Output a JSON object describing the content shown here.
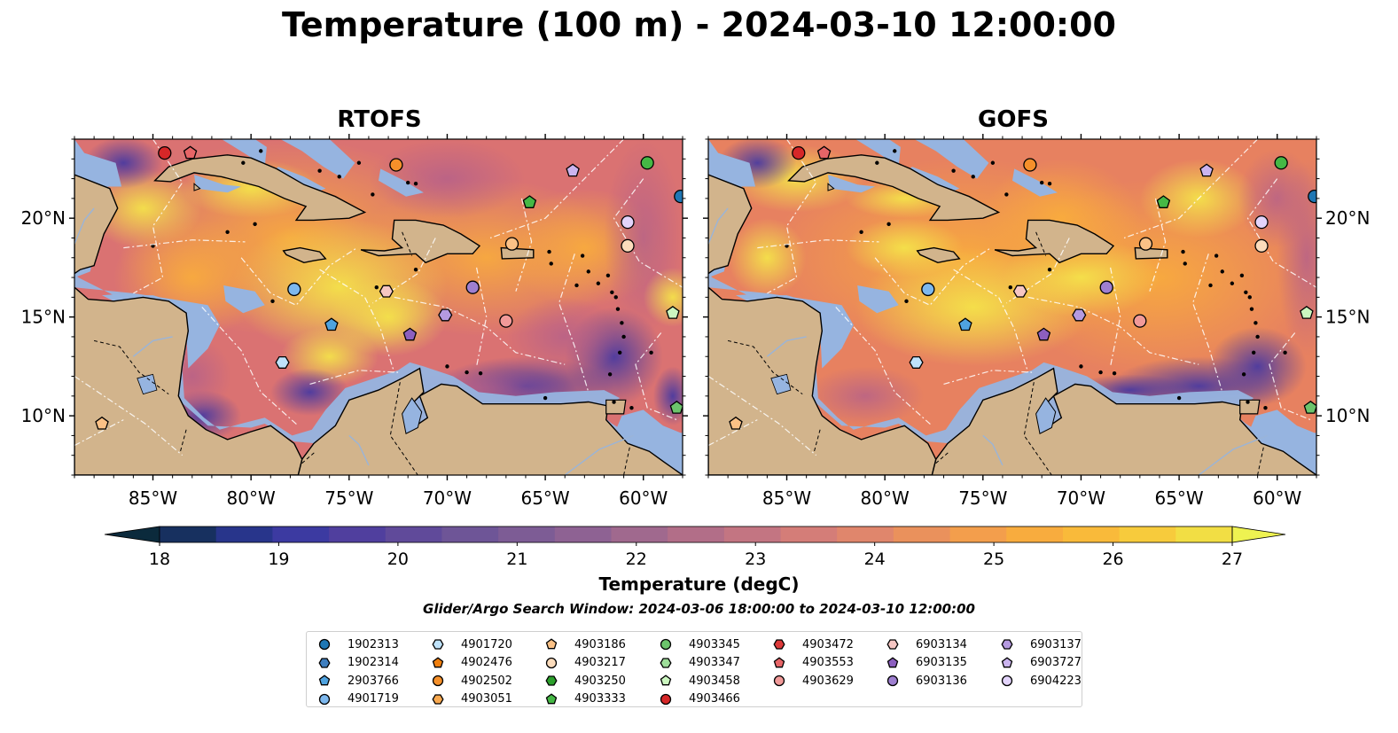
{
  "title": "Temperature (100 m) - 2024-03-10 12:00:00",
  "panels": [
    {
      "title": "RTOFS"
    },
    {
      "title": "GOFS"
    }
  ],
  "map": {
    "lon_range": [
      -89,
      -58
    ],
    "lat_range": [
      7,
      24
    ],
    "x_ticks": [
      "85°W",
      "80°W",
      "75°W",
      "70°W",
      "65°W",
      "60°W"
    ],
    "y_ticks": [
      "20°N",
      "15°N",
      "10°N"
    ],
    "colors": {
      "land": "#d2b48c",
      "shallow_water": "#96b4e0",
      "pacific": "#06202e"
    }
  },
  "colorbar": {
    "label": "Temperature (degC)",
    "ticks": [
      "18",
      "19",
      "20",
      "21",
      "22",
      "23",
      "24",
      "25",
      "26",
      "27"
    ],
    "range": [
      18,
      27
    ],
    "colors": [
      "#0b2a3c",
      "#17305f",
      "#28358b",
      "#3c3aa1",
      "#503f9e",
      "#604a9a",
      "#6e5597",
      "#7d5c95",
      "#8e6293",
      "#a0698e",
      "#b26e88",
      "#c37582",
      "#d47d78",
      "#e0866c",
      "#ea915c",
      "#f39e4c",
      "#f8ac3e",
      "#f9ba3a",
      "#f7cb3c",
      "#f2de44",
      "#eef251"
    ]
  },
  "search_window": "Glider/Argo Search Window: 2024-03-06 18:00:00 to 2024-03-10 12:00:00",
  "legend": [
    [
      {
        "id": "1902313",
        "marker": "circle",
        "color": "#1f77b4"
      },
      {
        "id": "1902314",
        "marker": "hexagon",
        "color": "#3f7fbf"
      },
      {
        "id": "2903766",
        "marker": "pentagon",
        "color": "#4fa3e0"
      },
      {
        "id": "4901719",
        "marker": "circle",
        "color": "#7db8ee"
      }
    ],
    [
      {
        "id": "4901720",
        "marker": "hexagon",
        "color": "#bfe3fb"
      },
      {
        "id": "4902476",
        "marker": "pentagon",
        "color": "#f07f0e"
      },
      {
        "id": "4902502",
        "marker": "circle",
        "color": "#f5902a"
      },
      {
        "id": "4903051",
        "marker": "hexagon",
        "color": "#f9a94f"
      }
    ],
    [
      {
        "id": "4903186",
        "marker": "pentagon",
        "color": "#fbc186"
      },
      {
        "id": "4903217",
        "marker": "circle",
        "color": "#fcdcbc"
      },
      {
        "id": "4903250",
        "marker": "hexagon",
        "color": "#2ca02c"
      },
      {
        "id": "4903333",
        "marker": "pentagon",
        "color": "#45b845"
      }
    ],
    [
      {
        "id": "4903345",
        "marker": "circle",
        "color": "#6cc46c"
      },
      {
        "id": "4903347",
        "marker": "hexagon",
        "color": "#9ede9a"
      },
      {
        "id": "4903458",
        "marker": "pentagon",
        "color": "#ccf7c0"
      },
      {
        "id": "4903466",
        "marker": "circle",
        "color": "#d62728"
      }
    ],
    [
      {
        "id": "4903472",
        "marker": "hexagon",
        "color": "#dd3a3a"
      },
      {
        "id": "4903553",
        "marker": "pentagon",
        "color": "#e76567"
      },
      {
        "id": "4903629",
        "marker": "circle",
        "color": "#f19a99"
      }
    ],
    [
      {
        "id": "6903134",
        "marker": "hexagon",
        "color": "#f6c6c3"
      },
      {
        "id": "6903135",
        "marker": "pentagon",
        "color": "#8c5fbf"
      },
      {
        "id": "6903136",
        "marker": "circle",
        "color": "#9e7fd0"
      }
    ],
    [
      {
        "id": "6903137",
        "marker": "hexagon",
        "color": "#b59ae0"
      },
      {
        "id": "6903727",
        "marker": "pentagon",
        "color": "#cbb4ef"
      },
      {
        "id": "6904223",
        "marker": "circle",
        "color": "#e3d4fb"
      }
    ]
  ],
  "floats": [
    {
      "lon": -84.4,
      "lat": 23.3,
      "marker": "circle",
      "color": "#d62728"
    },
    {
      "lon": -83.1,
      "lat": 23.3,
      "marker": "pentagon",
      "color": "#e76567"
    },
    {
      "lon": -72.6,
      "lat": 22.7,
      "marker": "circle",
      "color": "#f5902a"
    },
    {
      "lon": -63.6,
      "lat": 22.4,
      "marker": "pentagon",
      "color": "#cbb4ef"
    },
    {
      "lon": -59.8,
      "lat": 22.8,
      "marker": "circle",
      "color": "#45b845"
    },
    {
      "lon": -58.1,
      "lat": 21.1,
      "marker": "circle",
      "color": "#1f77b4"
    },
    {
      "lon": -65.8,
      "lat": 20.8,
      "marker": "pentagon",
      "color": "#45b845"
    },
    {
      "lon": -60.8,
      "lat": 19.8,
      "marker": "circle",
      "color": "#e3d4fb"
    },
    {
      "lon": -66.7,
      "lat": 18.7,
      "marker": "circle",
      "color": "#fbc186"
    },
    {
      "lon": -60.8,
      "lat": 18.6,
      "marker": "circle",
      "color": "#fcdcbc"
    },
    {
      "lon": -77.8,
      "lat": 16.4,
      "marker": "circle",
      "color": "#7db8ee"
    },
    {
      "lon": -73.1,
      "lat": 16.3,
      "marker": "hexagon",
      "color": "#f6c6c3"
    },
    {
      "lon": -68.7,
      "lat": 16.5,
      "marker": "circle",
      "color": "#9e7fd0"
    },
    {
      "lon": -75.9,
      "lat": 14.6,
      "marker": "pentagon",
      "color": "#4fa3e0"
    },
    {
      "lon": -70.1,
      "lat": 15.1,
      "marker": "hexagon",
      "color": "#b59ae0"
    },
    {
      "lon": -67.0,
      "lat": 14.8,
      "marker": "circle",
      "color": "#f19a99"
    },
    {
      "lon": -58.5,
      "lat": 15.2,
      "marker": "pentagon",
      "color": "#ccf7c0"
    },
    {
      "lon": -71.9,
      "lat": 14.1,
      "marker": "pentagon",
      "color": "#8c5fbf"
    },
    {
      "lon": -78.4,
      "lat": 12.7,
      "marker": "hexagon",
      "color": "#bfe3fb"
    },
    {
      "lon": -58.3,
      "lat": 10.4,
      "marker": "pentagon",
      "color": "#6cc46c"
    },
    {
      "lon": -87.6,
      "lat": 9.6,
      "marker": "pentagon",
      "color": "#fbc186"
    }
  ]
}
